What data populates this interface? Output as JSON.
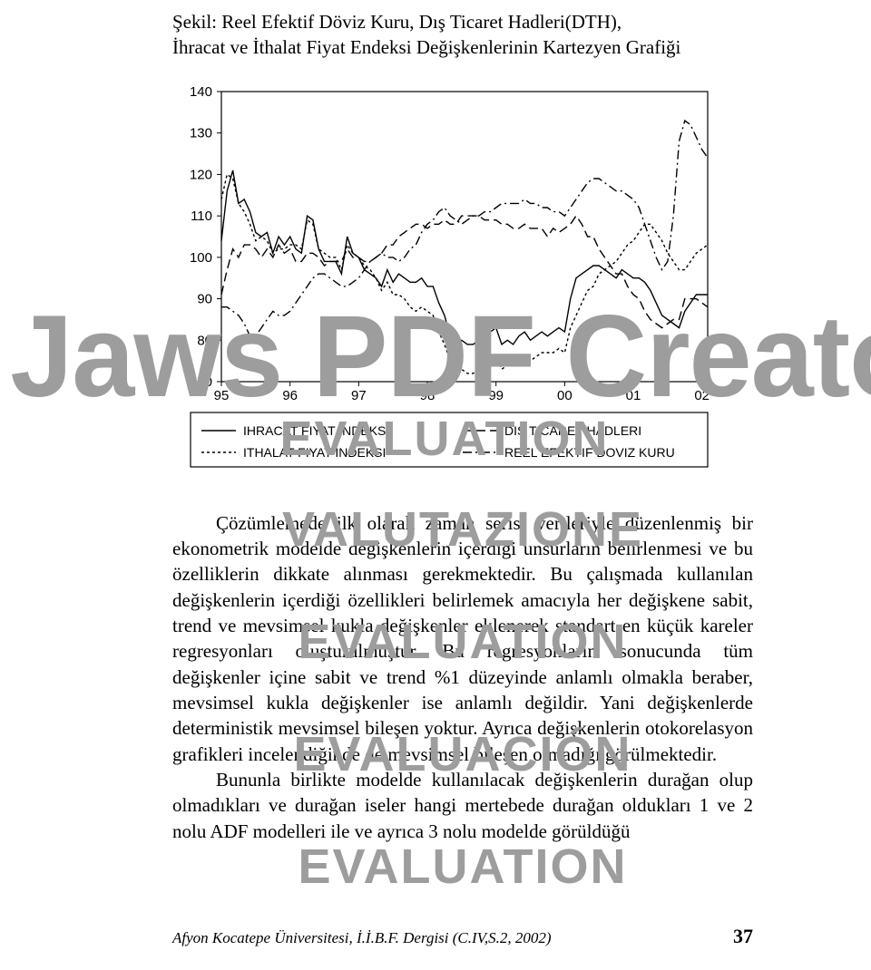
{
  "caption_line1": "Şekil: Reel Efektif Döviz Kuru, Dış Ticaret Hadleri(DTH),",
  "caption_line2": "İhracat ve İthalat  Fiyat Endeksi Değişkenlerinin Kartezyen Grafiği",
  "watermarks": {
    "big": "Jaws PDF Creator",
    "stack_top": "EVALUATION",
    "stack_mid1": "VALUTAZIONE",
    "stack_mid2": "EVALUATION",
    "stack_mid3": "EVALUACIÓN",
    "stack_bot": "EVALUATION"
  },
  "chart": {
    "type": "line",
    "background_color": "#ffffff",
    "axis_color": "#000000",
    "frame_color": "#000000",
    "grid_on": false,
    "y": {
      "min": 70,
      "max": 140,
      "step": 10,
      "ticks": [
        70,
        80,
        90,
        100,
        110,
        120,
        130,
        140
      ]
    },
    "x": {
      "labels": [
        "95",
        "96",
        "97",
        "98",
        "99",
        "00",
        "01",
        "02"
      ],
      "indices": [
        0,
        12,
        24,
        36,
        48,
        60,
        72,
        84
      ]
    },
    "legend": {
      "position": "below",
      "items": [
        {
          "label": "IHRACAT FIYAT INDEKSI",
          "style": "solid",
          "color": "#000000"
        },
        {
          "label": "ITHALAT FIYAT INDEKSI",
          "style": "short-dash",
          "color": "#000000"
        },
        {
          "label": "DIS TICARET HADLERI",
          "style": "long-dash",
          "color": "#000000"
        },
        {
          "label": "REEL EFEKTIF DOVIZ KURU",
          "style": "dash-dot",
          "color": "#000000"
        }
      ],
      "font_size": 14
    },
    "series": {
      "ihracat": [
        104,
        116,
        121,
        113,
        114,
        111,
        106,
        105,
        106,
        101,
        105,
        103,
        105,
        102,
        101,
        110,
        109,
        102,
        99,
        99,
        99,
        96,
        105,
        101,
        100,
        97,
        96,
        95,
        93,
        97,
        94,
        96,
        95,
        94,
        94,
        95,
        93,
        93,
        89,
        86,
        81,
        78,
        80,
        79,
        79,
        80,
        81,
        82,
        83,
        79,
        80,
        79,
        81,
        82,
        80,
        81,
        82,
        81,
        82,
        83,
        82,
        90,
        95,
        96,
        97,
        98,
        98,
        97,
        96,
        95,
        97,
        96,
        95,
        95,
        94,
        92,
        89,
        86,
        85,
        84,
        83,
        87,
        89,
        91,
        91,
        91
      ],
      "ithalat": [
        114,
        120,
        119,
        113,
        111,
        108,
        104,
        105,
        104,
        101,
        102,
        102,
        103,
        103,
        102,
        109,
        108,
        102,
        101,
        100,
        100,
        97,
        103,
        101,
        100,
        98,
        97,
        95,
        92,
        94,
        91,
        91,
        90,
        88,
        87,
        88,
        87,
        86,
        82,
        79,
        75,
        72,
        73,
        72,
        72,
        73,
        74,
        75,
        76,
        73,
        74,
        74,
        76,
        76,
        75,
        76,
        77,
        77,
        77,
        78,
        77,
        83,
        86,
        89,
        92,
        93,
        96,
        97,
        98,
        99,
        101,
        103,
        104,
        106,
        108,
        108,
        106,
        104,
        101,
        99,
        97,
        97,
        99,
        101,
        102,
        103
      ],
      "dth": [
        91,
        97,
        102,
        100,
        103,
        103,
        102,
        100,
        102,
        100,
        103,
        101,
        102,
        99,
        99,
        101,
        101,
        100,
        98,
        99,
        99,
        99,
        102,
        100,
        100,
        99,
        99,
        100,
        101,
        103,
        103,
        105,
        106,
        107,
        108,
        108,
        107,
        108,
        108,
        109,
        108,
        108,
        110,
        110,
        110,
        110,
        109,
        109,
        109,
        108,
        108,
        107,
        107,
        108,
        107,
        107,
        107,
        105,
        107,
        106,
        107,
        108,
        110,
        108,
        105,
        105,
        102,
        100,
        98,
        96,
        96,
        93,
        91,
        90,
        87,
        85,
        84,
        83,
        84,
        85,
        85,
        90,
        90,
        90,
        89,
        88
      ],
      "reel": [
        88,
        88,
        87,
        86,
        84,
        81,
        81,
        83,
        85,
        87,
        86,
        86,
        87,
        89,
        91,
        93,
        95,
        96,
        96,
        95,
        94,
        93,
        93,
        94,
        95,
        97,
        99,
        100,
        101,
        100,
        100,
        99,
        100,
        102,
        103,
        106,
        108,
        109,
        111,
        112,
        110,
        109,
        108,
        109,
        110,
        110,
        111,
        111,
        112,
        113,
        113,
        113,
        113,
        114,
        113,
        113,
        112,
        112,
        111,
        111,
        110,
        112,
        114,
        116,
        118,
        119,
        119,
        118,
        117,
        116,
        116,
        115,
        114,
        112,
        108,
        104,
        100,
        97,
        99,
        110,
        128,
        133,
        132,
        129,
        126,
        124
      ]
    },
    "line_width": 1.4,
    "tick_font_size": 15
  },
  "body": {
    "p1": "Çözümlemede ilk olarak zaman serisi verileriyle düzenlenmiş bir ekonometrik modelde değişkenlerin içerdiği unsurların belirlenmesi ve bu özelliklerin dikkate alınması gerekmektedir. Bu çalışmada kullanılan değişkenlerin içerdiği özellikleri belirlemek amacıyla her değişkene sabit, trend ve mevsimsel kukla değişkenler eklenerek standart en küçük kareler regresyonları oluşturulmuştur. Bu regresyonların sonucunda tüm değişkenler içine sabit ve trend %1 düzeyinde anlamlı olmakla beraber, mevsimsel kukla değişkenler ise anlamlı değildir. Yani değişkenlerde deterministik mevsimsel bileşen yoktur. Ayrıca değişkenlerin otokorelasyon grafikleri incelendiğinde de mevsimsel bileşen olmadığı görülmektedir.",
    "p2": "Bununla birlikte modelde kullanılacak değişkenlerin durağan olup olmadıkları ve durağan iseler hangi mertebede durağan oldukları 1 ve 2 nolu ADF modelleri ile ve ayrıca 3 nolu modelde görüldüğü"
  },
  "footer": {
    "journal": "Afyon Kocatepe Üniversitesi, İ.İ.B.F. Dergisi (C.IV,S.2, 2002)",
    "page": "37"
  }
}
